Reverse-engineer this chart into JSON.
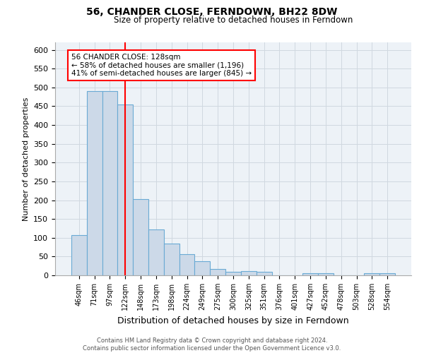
{
  "title": "56, CHANDER CLOSE, FERNDOWN, BH22 8DW",
  "subtitle": "Size of property relative to detached houses in Ferndown",
  "xlabel": "Distribution of detached houses by size in Ferndown",
  "ylabel": "Number of detached properties",
  "footer_line1": "Contains HM Land Registry data © Crown copyright and database right 2024.",
  "footer_line2": "Contains public sector information licensed under the Open Government Licence v3.0.",
  "categories": [
    "46sqm",
    "71sqm",
    "97sqm",
    "122sqm",
    "148sqm",
    "173sqm",
    "198sqm",
    "224sqm",
    "249sqm",
    "275sqm",
    "300sqm",
    "325sqm",
    "351sqm",
    "376sqm",
    "401sqm",
    "427sqm",
    "452sqm",
    "478sqm",
    "503sqm",
    "528sqm",
    "554sqm"
  ],
  "values": [
    107,
    490,
    490,
    455,
    203,
    122,
    85,
    57,
    38,
    16,
    10,
    11,
    10,
    0,
    0,
    5,
    5,
    0,
    0,
    6,
    6
  ],
  "bar_color": "#ccd9e8",
  "bar_edge_color": "#6aaad4",
  "grid_color": "#d0d8e0",
  "bg_color": "#edf2f7",
  "red_line_x": 3,
  "annotation_text": "56 CHANDER CLOSE: 128sqm\n← 58% of detached houses are smaller (1,196)\n41% of semi-detached houses are larger (845) →",
  "annotation_box_color": "white",
  "annotation_box_edge_color": "red",
  "ylim": [
    0,
    620
  ],
  "yticks": [
    0,
    50,
    100,
    150,
    200,
    250,
    300,
    350,
    400,
    450,
    500,
    550,
    600
  ]
}
